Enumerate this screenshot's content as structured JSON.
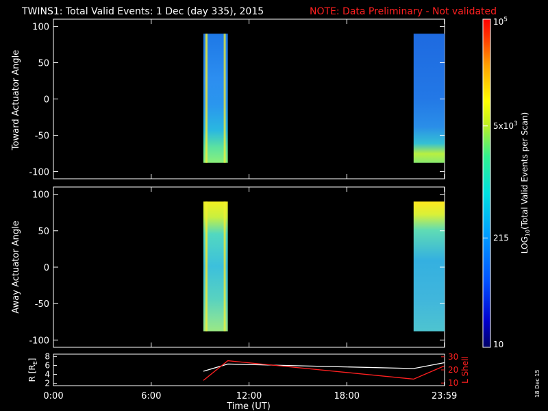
{
  "header": {
    "title": "TWINS1: Total Valid Events:  1 Dec (day 335), 2015",
    "note": "NOTE: Data Preliminary - Not validated",
    "note_color": "#ff2020"
  },
  "colors": {
    "background": "#000000",
    "axis": "#ffffff",
    "lshell": "#ff2020",
    "radius": "#ffffff"
  },
  "datestamp": "18 Dec 15",
  "chart_data": [
    {
      "type": "heatmap",
      "panel": "toward",
      "ylabel": "Toward Actuator Angle",
      "ylim": [
        -110,
        110
      ],
      "yticks": [
        100,
        50,
        0,
        -50,
        -100
      ],
      "xlim": [
        0,
        24
      ],
      "xticks": [
        "0:00",
        "6:00",
        "12:00",
        "18:00",
        "23:59"
      ],
      "xtick_values": [
        0,
        6,
        12,
        18,
        23.983
      ],
      "blocks": [
        {
          "t_start": 9.2,
          "t_end": 10.7,
          "angle_min": -88,
          "angle_max": 90,
          "level": "mid (blue-cyan, bright stripes near 9.3h and 10.6h)"
        },
        {
          "t_start": 22.1,
          "t_end": 24.0,
          "angle_min": -88,
          "angle_max": 90,
          "level": "low (blue, green-yellow toward -80)"
        }
      ]
    },
    {
      "type": "heatmap",
      "panel": "away",
      "ylabel": "Away Actuator Angle",
      "ylim": [
        -110,
        110
      ],
      "yticks": [
        100,
        50,
        0,
        -50,
        -100
      ],
      "xlim": [
        0,
        24
      ],
      "xticks": [
        "0:00",
        "6:00",
        "12:00",
        "18:00",
        "23:59"
      ],
      "xtick_values": [
        0,
        6,
        12,
        18,
        23.983
      ],
      "blocks": [
        {
          "t_start": 9.2,
          "t_end": 10.7,
          "angle_min": -88,
          "angle_max": 90,
          "level": "mid-high (yellow at top, cyan/green body)"
        },
        {
          "t_start": 22.1,
          "t_end": 24.0,
          "angle_min": -88,
          "angle_max": 90,
          "level": "mid (yellow at top, cyan body)"
        }
      ]
    },
    {
      "type": "line",
      "panel": "orbit",
      "ylabel_left": "R [R",
      "ylabel_left_sub": "E",
      "ylabel_left_end": "]",
      "ylabel_right": "L Shell",
      "left_ylim": [
        1.5,
        8.5
      ],
      "left_yticks": [
        "8",
        "6",
        "4",
        "2"
      ],
      "right_ylim": [
        8,
        32
      ],
      "right_yticks": [
        "30",
        "20",
        "10"
      ],
      "xlabel": "Time (UT)",
      "series": [
        {
          "axis": "left",
          "x": [
            9.2,
            10.7,
            22.1,
            23.98
          ],
          "y": [
            4.7,
            6.3,
            5.3,
            6.6
          ]
        },
        {
          "axis": "right",
          "x": [
            9.2,
            10.7,
            22.1,
            23.98
          ],
          "y": [
            12,
            27,
            13,
            23
          ]
        }
      ]
    }
  ],
  "colorbar": {
    "label_prefix": "LOG",
    "label_sub": "10",
    "label_suffix": "(Total Valid Events per Scan)",
    "ticks": [
      {
        "label": "10",
        "base": "10",
        "exp": "5",
        "value": 100000
      },
      {
        "label": "5x10",
        "base": "5x10",
        "exp": "3",
        "value": 5000
      },
      {
        "label": "215",
        "base": "215",
        "exp": "",
        "value": 215
      },
      {
        "label": "10",
        "base": "10",
        "exp": "",
        "value": 10
      }
    ],
    "range": [
      10,
      100000
    ]
  }
}
